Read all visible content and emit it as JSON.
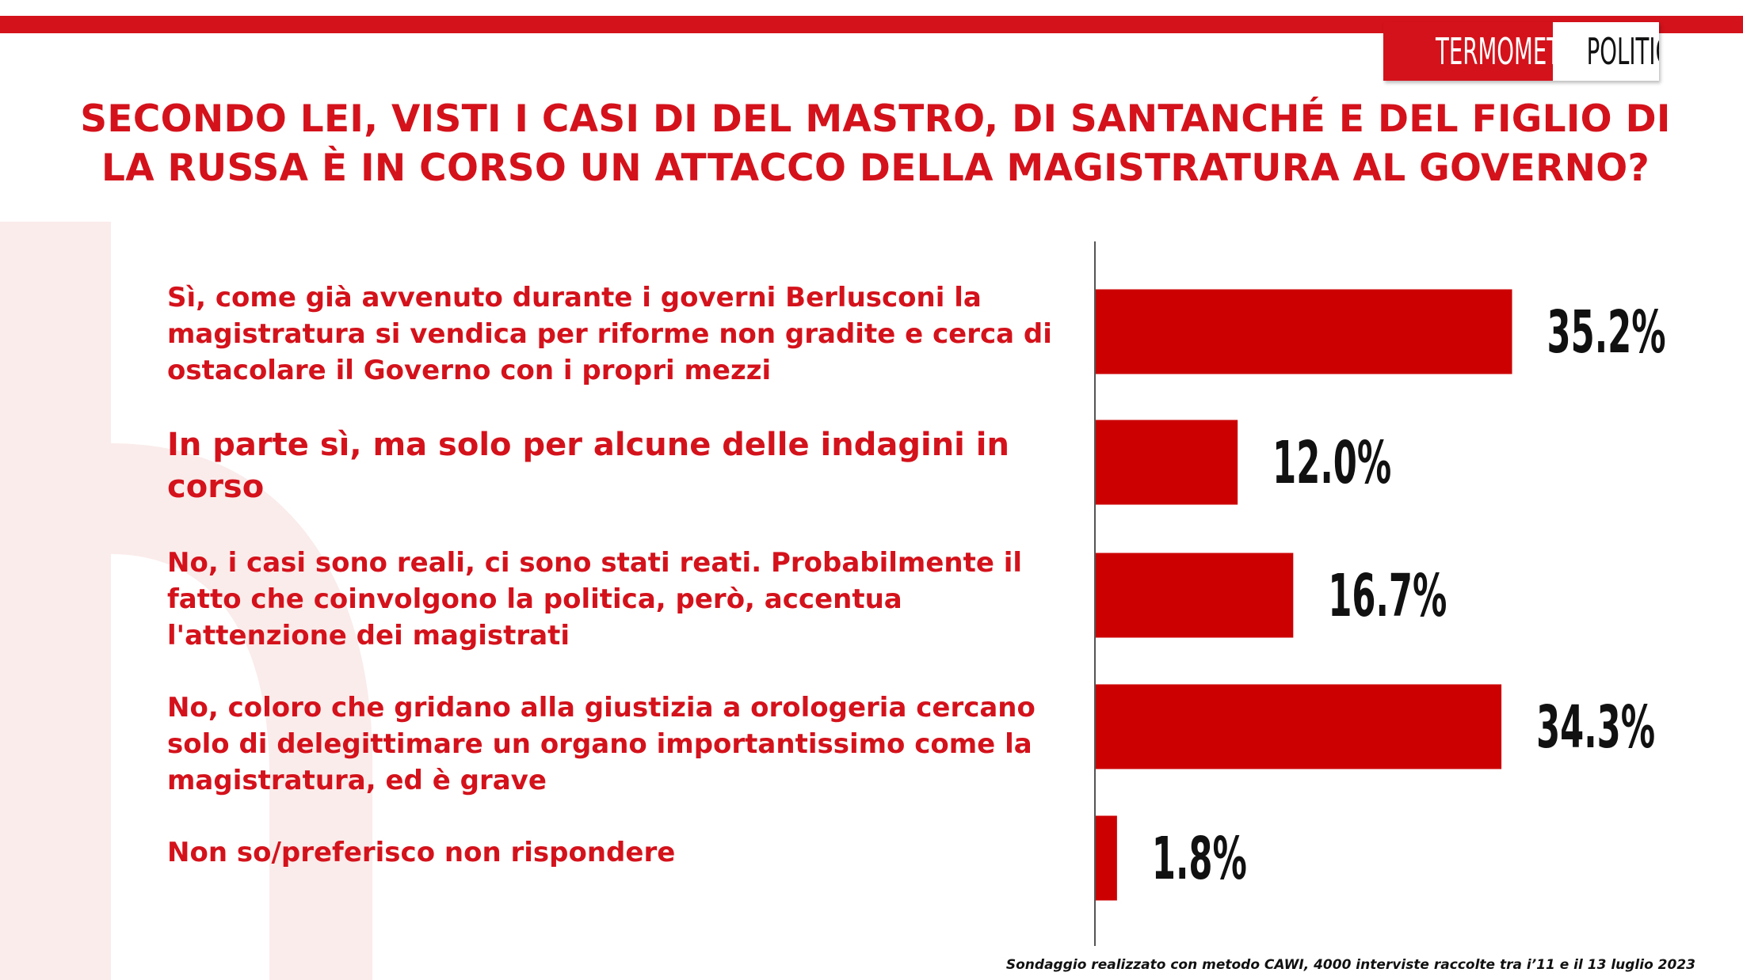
{
  "logo": {
    "part1": "TERMOMETRO",
    "part2": "POLITICO"
  },
  "colors": {
    "accent": "#d3121b",
    "bar": "#cc0000",
    "text_dark": "#111111"
  },
  "chart_data": {
    "type": "bar",
    "orientation": "horizontal",
    "title": "SECONDO LEI, VISTI I CASI DI DEL MASTRO, DI SANTANCHÉ E DEL FIGLIO DI LA RUSSA È IN CORSO UN ATTACCO DELLA MAGISTRATURA AL GOVERNO?",
    "categories": [
      "Sì, come già  avvenuto durante i governi Berlusconi la magistratura si vendica per riforme non gradite e cerca di ostacolare il Governo con i propri mezzi",
      "In parte sì, ma solo per alcune delle indagini in corso",
      "No, i casi sono reali, ci sono stati reati. Probabilmente il fatto che coinvolgono la politica, però, accentua l'attenzione dei magistrati",
      "No, coloro che gridano alla giustizia a orologeria cercano solo di delegittimare un organo importantissimo come la magistratura, ed è grave",
      "Non so/preferisco non rispondere"
    ],
    "values": [
      35.2,
      12.0,
      16.7,
      34.3,
      1.8
    ],
    "value_labels": [
      "35.2%",
      "12.0%",
      "16.7%",
      "34.3%",
      "1.8%"
    ],
    "unit": "%",
    "xlim": [
      0,
      56
    ],
    "grid": false,
    "legend": "none"
  },
  "footnote": "Sondaggio realizzato con metodo CAWI, 4000 interviste raccolte tra i’11 e il 13 luglio 2023"
}
